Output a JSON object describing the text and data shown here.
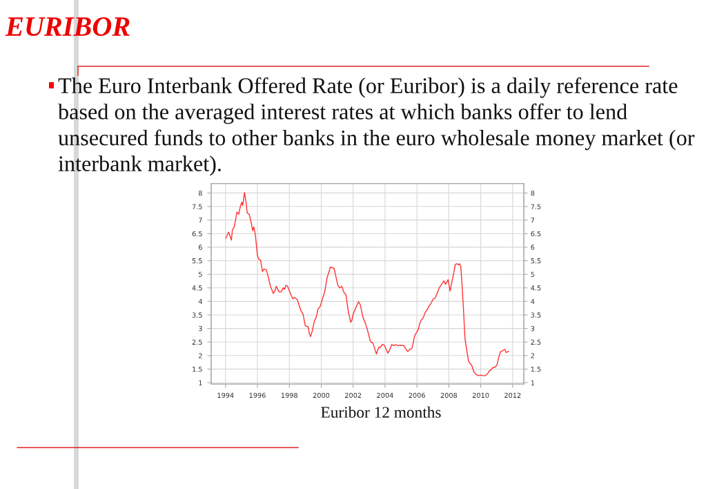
{
  "chart_data": {
    "type": "line",
    "title": "EURIBOR",
    "annotations": [
      "The Euro Interbank Offered Rate (or Euribor) is a daily reference rate based on the averaged interest rates at which banks offer to lend unsecured funds to other banks in the euro wholesale money market (or interbank market).",
      "Euribor 12 months"
    ],
    "color": "#ff3030",
    "x": [
      1994.01,
      1994.19,
      1994.37,
      1994.43,
      1994.55,
      1994.72,
      1994.83,
      1994.93,
      1995.02,
      1995.08,
      1995.19,
      1995.29,
      1995.36,
      1995.48,
      1995.59,
      1995.7,
      1995.77,
      1995.87,
      1996.0,
      1996.08,
      1996.2,
      1996.31,
      1996.41,
      1996.56,
      1996.67,
      1996.82,
      1997.0,
      1997.09,
      1997.18,
      1997.35,
      1997.49,
      1997.61,
      1997.69,
      1997.78,
      1997.89,
      1998.07,
      1998.21,
      1998.35,
      1998.5,
      1998.72,
      1998.86,
      1999.0,
      1999.18,
      1999.25,
      1999.33,
      1999.43,
      1999.58,
      1999.68,
      1999.79,
      1999.94,
      2000.11,
      2000.22,
      2000.37,
      2000.44,
      2000.58,
      2000.8,
      2000.9,
      2001.04,
      2001.16,
      2001.3,
      2001.42,
      2001.55,
      2001.69,
      2001.85,
      2001.92,
      2002.0,
      2002.12,
      2002.34,
      2002.45,
      2002.62,
      2002.77,
      2002.88,
      2003.07,
      2003.17,
      2003.24,
      2003.46,
      2003.6,
      2003.7,
      2003.84,
      2003.96,
      2004.17,
      2004.29,
      2004.42,
      2004.53,
      2004.65,
      2004.82,
      2004.94,
      2005.18,
      2005.32,
      2005.42,
      2005.56,
      2005.68,
      2005.75,
      2005.85,
      2005.97,
      2006.08,
      2006.18,
      2006.28,
      2006.4,
      2006.5,
      2006.61,
      2006.76,
      2006.9,
      2007.01,
      2007.14,
      2007.26,
      2007.4,
      2007.55,
      2007.69,
      2007.79,
      2007.88,
      2007.95,
      2008.08,
      2008.19,
      2008.31,
      2008.41,
      2008.51,
      2008.6,
      2008.67,
      2008.75,
      2008.84,
      2008.93,
      2009.01,
      2009.13,
      2009.24,
      2009.34,
      2009.44,
      2009.56,
      2009.7,
      2009.85,
      2009.99,
      2010.13,
      2010.28,
      2010.42,
      2010.53,
      2010.64,
      2010.75,
      2010.92,
      2011.02,
      2011.14,
      2011.25,
      2011.35,
      2011.5,
      2011.6,
      2011.71,
      2011.76
    ],
    "values": [
      6.33,
      6.56,
      6.26,
      6.64,
      6.75,
      7.3,
      7.22,
      7.51,
      7.66,
      7.54,
      8.02,
      7.64,
      7.26,
      7.22,
      6.96,
      6.61,
      6.75,
      6.45,
      5.69,
      5.56,
      5.52,
      5.1,
      5.2,
      5.16,
      4.93,
      4.55,
      4.29,
      4.38,
      4.56,
      4.35,
      4.35,
      4.5,
      4.44,
      4.59,
      4.56,
      4.29,
      4.1,
      4.14,
      4.06,
      3.67,
      3.53,
      3.1,
      3.06,
      2.81,
      2.7,
      2.89,
      3.3,
      3.4,
      3.7,
      3.82,
      4.16,
      4.36,
      4.88,
      5.01,
      5.27,
      5.22,
      4.97,
      4.6,
      4.5,
      4.55,
      4.33,
      4.25,
      3.65,
      3.23,
      3.3,
      3.53,
      3.7,
      3.99,
      3.87,
      3.4,
      3.19,
      2.98,
      2.55,
      2.47,
      2.47,
      2.06,
      2.3,
      2.3,
      2.41,
      2.38,
      2.09,
      2.21,
      2.41,
      2.37,
      2.4,
      2.37,
      2.38,
      2.37,
      2.23,
      2.15,
      2.23,
      2.26,
      2.42,
      2.72,
      2.85,
      2.95,
      3.19,
      3.32,
      3.4,
      3.57,
      3.67,
      3.82,
      3.95,
      4.08,
      4.12,
      4.29,
      4.5,
      4.63,
      4.76,
      4.63,
      4.72,
      4.8,
      4.38,
      4.72,
      5.05,
      5.37,
      5.39,
      5.35,
      5.39,
      5.28,
      4.5,
      3.57,
      2.64,
      2.17,
      1.79,
      1.7,
      1.64,
      1.41,
      1.31,
      1.26,
      1.28,
      1.26,
      1.26,
      1.32,
      1.43,
      1.47,
      1.55,
      1.58,
      1.66,
      1.96,
      2.15,
      2.17,
      2.23,
      2.11,
      2.15,
      2.15
    ],
    "xlim": [
      1993.1,
      2012.7
    ],
    "xticks": [
      1994,
      1996,
      1998,
      2000,
      2002,
      2004,
      2006,
      2008,
      2010,
      2012
    ],
    "ylim": [
      0.95,
      8.35
    ],
    "yticks": [
      1,
      1.5,
      2,
      2.5,
      3,
      3.5,
      4,
      4.5,
      5,
      5.5,
      6,
      6.5,
      7,
      7.5,
      8
    ],
    "y2lim": [
      0.95,
      8.35
    ],
    "y2ticks": [
      1,
      1.5,
      2,
      2.5,
      3,
      3.5,
      4,
      4.5,
      5,
      5.5,
      6,
      6.5,
      7,
      7.5,
      8
    ],
    "grid": true
  }
}
